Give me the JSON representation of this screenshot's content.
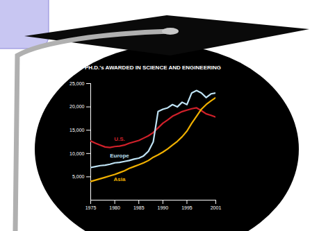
{
  "chart_data": {
    "type": "line",
    "title": "PH.D.'s AWARDED IN SCIENCE AND ENGINEERING",
    "x": [
      1975,
      1976,
      1977,
      1978,
      1979,
      1980,
      1981,
      1982,
      1983,
      1984,
      1985,
      1986,
      1987,
      1988,
      1989,
      1990,
      1991,
      1992,
      1993,
      1994,
      1995,
      1996,
      1997,
      1998,
      1999,
      2000,
      2001
    ],
    "xlim": [
      1975,
      2001
    ],
    "xticks": [
      1975,
      1980,
      1985,
      1990,
      1995,
      2001
    ],
    "ylim": [
      0,
      25000
    ],
    "yticks": [
      {
        "value": 5000,
        "label": "5,000"
      },
      {
        "value": 10000,
        "label": "10,000"
      },
      {
        "value": 15000,
        "label": "15,000"
      },
      {
        "value": 20000,
        "label": "20,000"
      },
      {
        "value": 25000,
        "label": "25,000"
      }
    ],
    "grid": false,
    "series": [
      {
        "name": "U.S.",
        "color": "#d0202a",
        "values": [
          12700,
          12200,
          11800,
          11400,
          11300,
          11500,
          11600,
          11800,
          12200,
          12500,
          12800,
          13300,
          13800,
          14500,
          15500,
          16500,
          17200,
          18000,
          18500,
          19000,
          19300,
          19600,
          19800,
          19200,
          18500,
          18200,
          17800
        ]
      },
      {
        "name": "Europe",
        "color": "#bfe3f5",
        "values": [
          7000,
          7200,
          7400,
          7500,
          7700,
          8000,
          8100,
          8300,
          8500,
          8800,
          9000,
          9500,
          10500,
          12500,
          19000,
          19500,
          19800,
          20500,
          20000,
          21000,
          20500,
          23000,
          23500,
          23000,
          22000,
          22800,
          23000
        ]
      },
      {
        "name": "Asia",
        "color": "#f0b000",
        "values": [
          4000,
          4300,
          4600,
          4900,
          5200,
          5500,
          5900,
          6300,
          6800,
          7200,
          7600,
          8000,
          8500,
          9200,
          9700,
          10300,
          11000,
          11800,
          12600,
          13600,
          14800,
          16500,
          18000,
          19500,
          20500,
          21300,
          22000
        ]
      }
    ]
  }
}
